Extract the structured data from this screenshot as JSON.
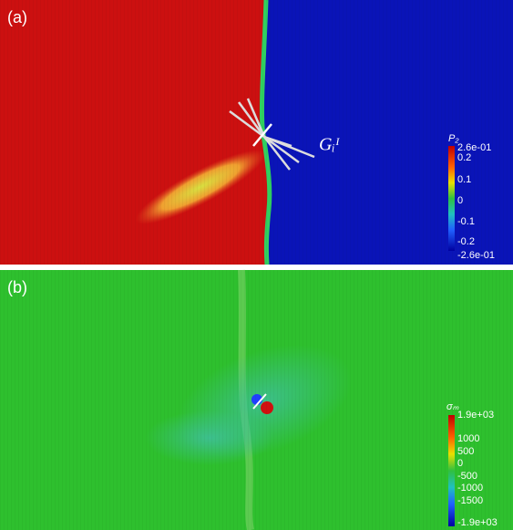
{
  "panels": [
    {
      "label": "(a)",
      "annotation": "Gᵢᴵ",
      "colorbar": {
        "title": "P₂",
        "ticks": [
          "2.6e-01",
          "0.2",
          "0.1",
          "0",
          "-0.1",
          "-0.2",
          "-2.6e-01"
        ]
      }
    },
    {
      "label": "(b)",
      "colorbar": {
        "title": "σₘ",
        "ticks": [
          "1.9e+03",
          "1000",
          "500",
          "0",
          "-500",
          "-1000",
          "-1500",
          "-1.9e+03"
        ]
      }
    }
  ]
}
